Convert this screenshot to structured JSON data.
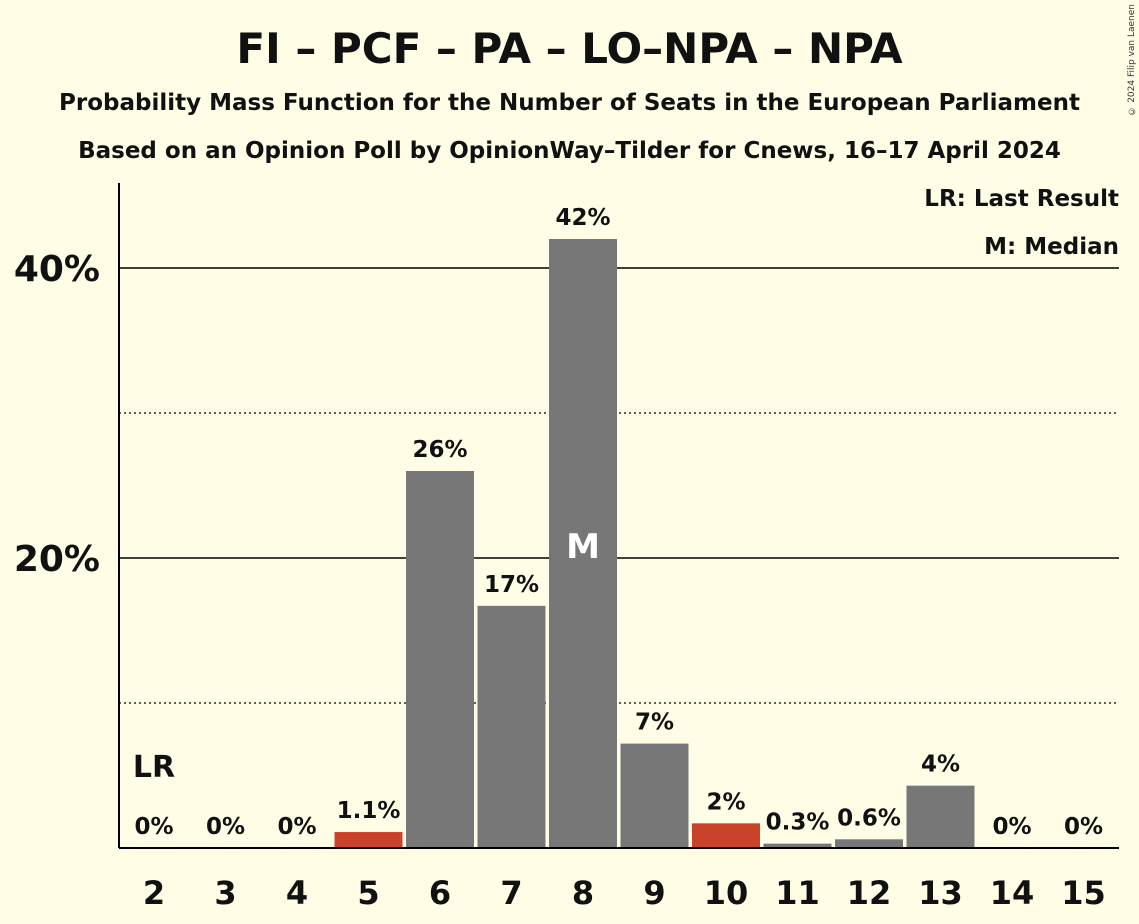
{
  "title": "FI – PCF – PA – LO–NPA – NPA",
  "subtitle_1": "Probability Mass Function for the Number of Seats in the European Parliament",
  "subtitle_2": "Based on an Opinion Poll by OpinionWay–Tilder for Cnews, 16–17 April 2024",
  "copyright": "© 2024 Filip van Laenen",
  "legend": {
    "last_result": "LR: Last Result",
    "median": "M: Median"
  },
  "markers": {
    "last_result_label": "LR",
    "median_label": "M"
  },
  "colors": {
    "background": "#fffde6",
    "bar_default": "#777777",
    "bar_highlight": "#c8432a",
    "axis": "#000000"
  },
  "chart_data": {
    "type": "bar",
    "categories": [
      "2",
      "3",
      "4",
      "5",
      "6",
      "7",
      "8",
      "9",
      "10",
      "11",
      "12",
      "13",
      "14",
      "15"
    ],
    "values": [
      0,
      0,
      0,
      1.1,
      26,
      16.7,
      42,
      7.2,
      1.7,
      0.3,
      0.6,
      4.3,
      0,
      0
    ],
    "value_labels": [
      "0%",
      "0%",
      "0%",
      "1.1%",
      "26%",
      "17%",
      "42%",
      "7%",
      "2%",
      "0.3%",
      "0.6%",
      "4%",
      "0%",
      "0%"
    ],
    "highlighted": [
      "5",
      "10"
    ],
    "last_result_category": "2",
    "median_category": "8",
    "ylim": [
      0,
      46
    ],
    "y_ticks": [
      {
        "value": 10,
        "label": "",
        "style": "dotted"
      },
      {
        "value": 20,
        "label": "20%",
        "style": "solid"
      },
      {
        "value": 30,
        "label": "",
        "style": "dotted"
      },
      {
        "value": 40,
        "label": "40%",
        "style": "solid"
      }
    ],
    "xlabel": "",
    "ylabel": ""
  }
}
